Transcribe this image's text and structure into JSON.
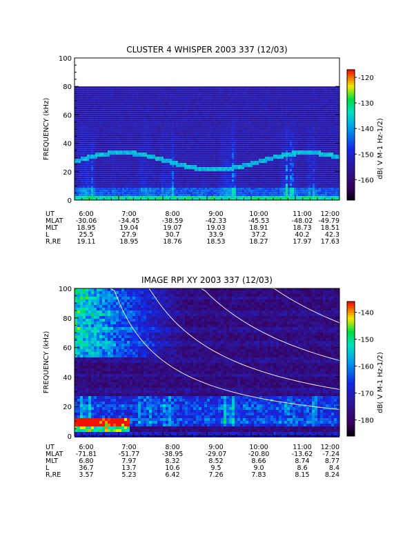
{
  "chart_data": [
    {
      "type": "heatmap",
      "title": "CLUSTER 4 WHISPER 2003 337 (12/03)",
      "ylabel": "FREQUENCY (kHz)",
      "x_ticks": [
        "6:00",
        "7:00",
        "8:00",
        "9:00",
        "10:00",
        "11:00",
        "12:00"
      ],
      "y_ticks": [
        "0",
        "20",
        "40",
        "60",
        "80",
        "100"
      ],
      "ylim": [
        0,
        100
      ],
      "data_top": 80,
      "colorbar": {
        "label": "dB( V M-1 Hz-1/2)",
        "ticks": [
          "-120",
          "-130",
          "-140",
          "-150",
          "-160"
        ],
        "range": [
          -168,
          -117
        ],
        "colormap": "rainbow-dark"
      },
      "ephemeris": {
        "labels": [
          "UT",
          "MLAT",
          "MLT",
          "L",
          "R,RE"
        ],
        "rows": [
          [
            "6:00",
            "7:00",
            "8:00",
            "9:00",
            "10:00",
            "11:00",
            "12:00"
          ],
          [
            "-30.06",
            "-34.45",
            "-38.59",
            "-42.33",
            "-45.53",
            "-48.02",
            "-49.79"
          ],
          [
            "18.95",
            "19.04",
            "19.07",
            "19.03",
            "18.91",
            "18.73",
            "18.51"
          ],
          [
            "25.5",
            "27.9",
            "30.7",
            "33.9",
            "37.2",
            "40.2",
            "42.3"
          ],
          [
            "19.11",
            "18.95",
            "18.76",
            "18.53",
            "18.27",
            "17.97",
            "17.63"
          ]
        ]
      }
    },
    {
      "type": "heatmap",
      "title": "IMAGE RPI XY 2003 337 (12/03)",
      "ylabel": "FREQUENCY (kHz)",
      "x_ticks": [
        "6:00",
        "7:00",
        "8:00",
        "9:00",
        "10:00",
        "11:00",
        "12:00"
      ],
      "y_ticks": [
        "0",
        "20",
        "40",
        "60",
        "80",
        "100"
      ],
      "ylim": [
        0,
        100
      ],
      "data_top": 100,
      "colorbar": {
        "label": "dB( V M-1 Hz-1/2)",
        "ticks": [
          "-140",
          "-150",
          "-160",
          "-170",
          "-180"
        ],
        "range": [
          -186,
          -136
        ],
        "colormap": "rainbow-dark"
      },
      "ephemeris": {
        "labels": [
          "UT",
          "MLAT",
          "MLT",
          "L",
          "R,RE"
        ],
        "rows": [
          [
            "6:00",
            "7:00",
            "8:00",
            "9:00",
            "10:00",
            "11:00",
            "12:00"
          ],
          [
            "-71.81",
            "-51.77",
            "-38.95",
            "-29.07",
            "-20.80",
            "-13.62",
            "-7.24"
          ],
          [
            "6.80",
            "7.97",
            "8.32",
            "8.52",
            "8.66",
            "8.74",
            "8.77"
          ],
          [
            "36.7",
            "13.7",
            "10.6",
            "9.5",
            "9.0",
            "8.6",
            "8.4"
          ],
          [
            "3.57",
            "5.23",
            "6.42",
            "7.26",
            "7.83",
            "8.15",
            "8.24"
          ]
        ]
      }
    }
  ]
}
